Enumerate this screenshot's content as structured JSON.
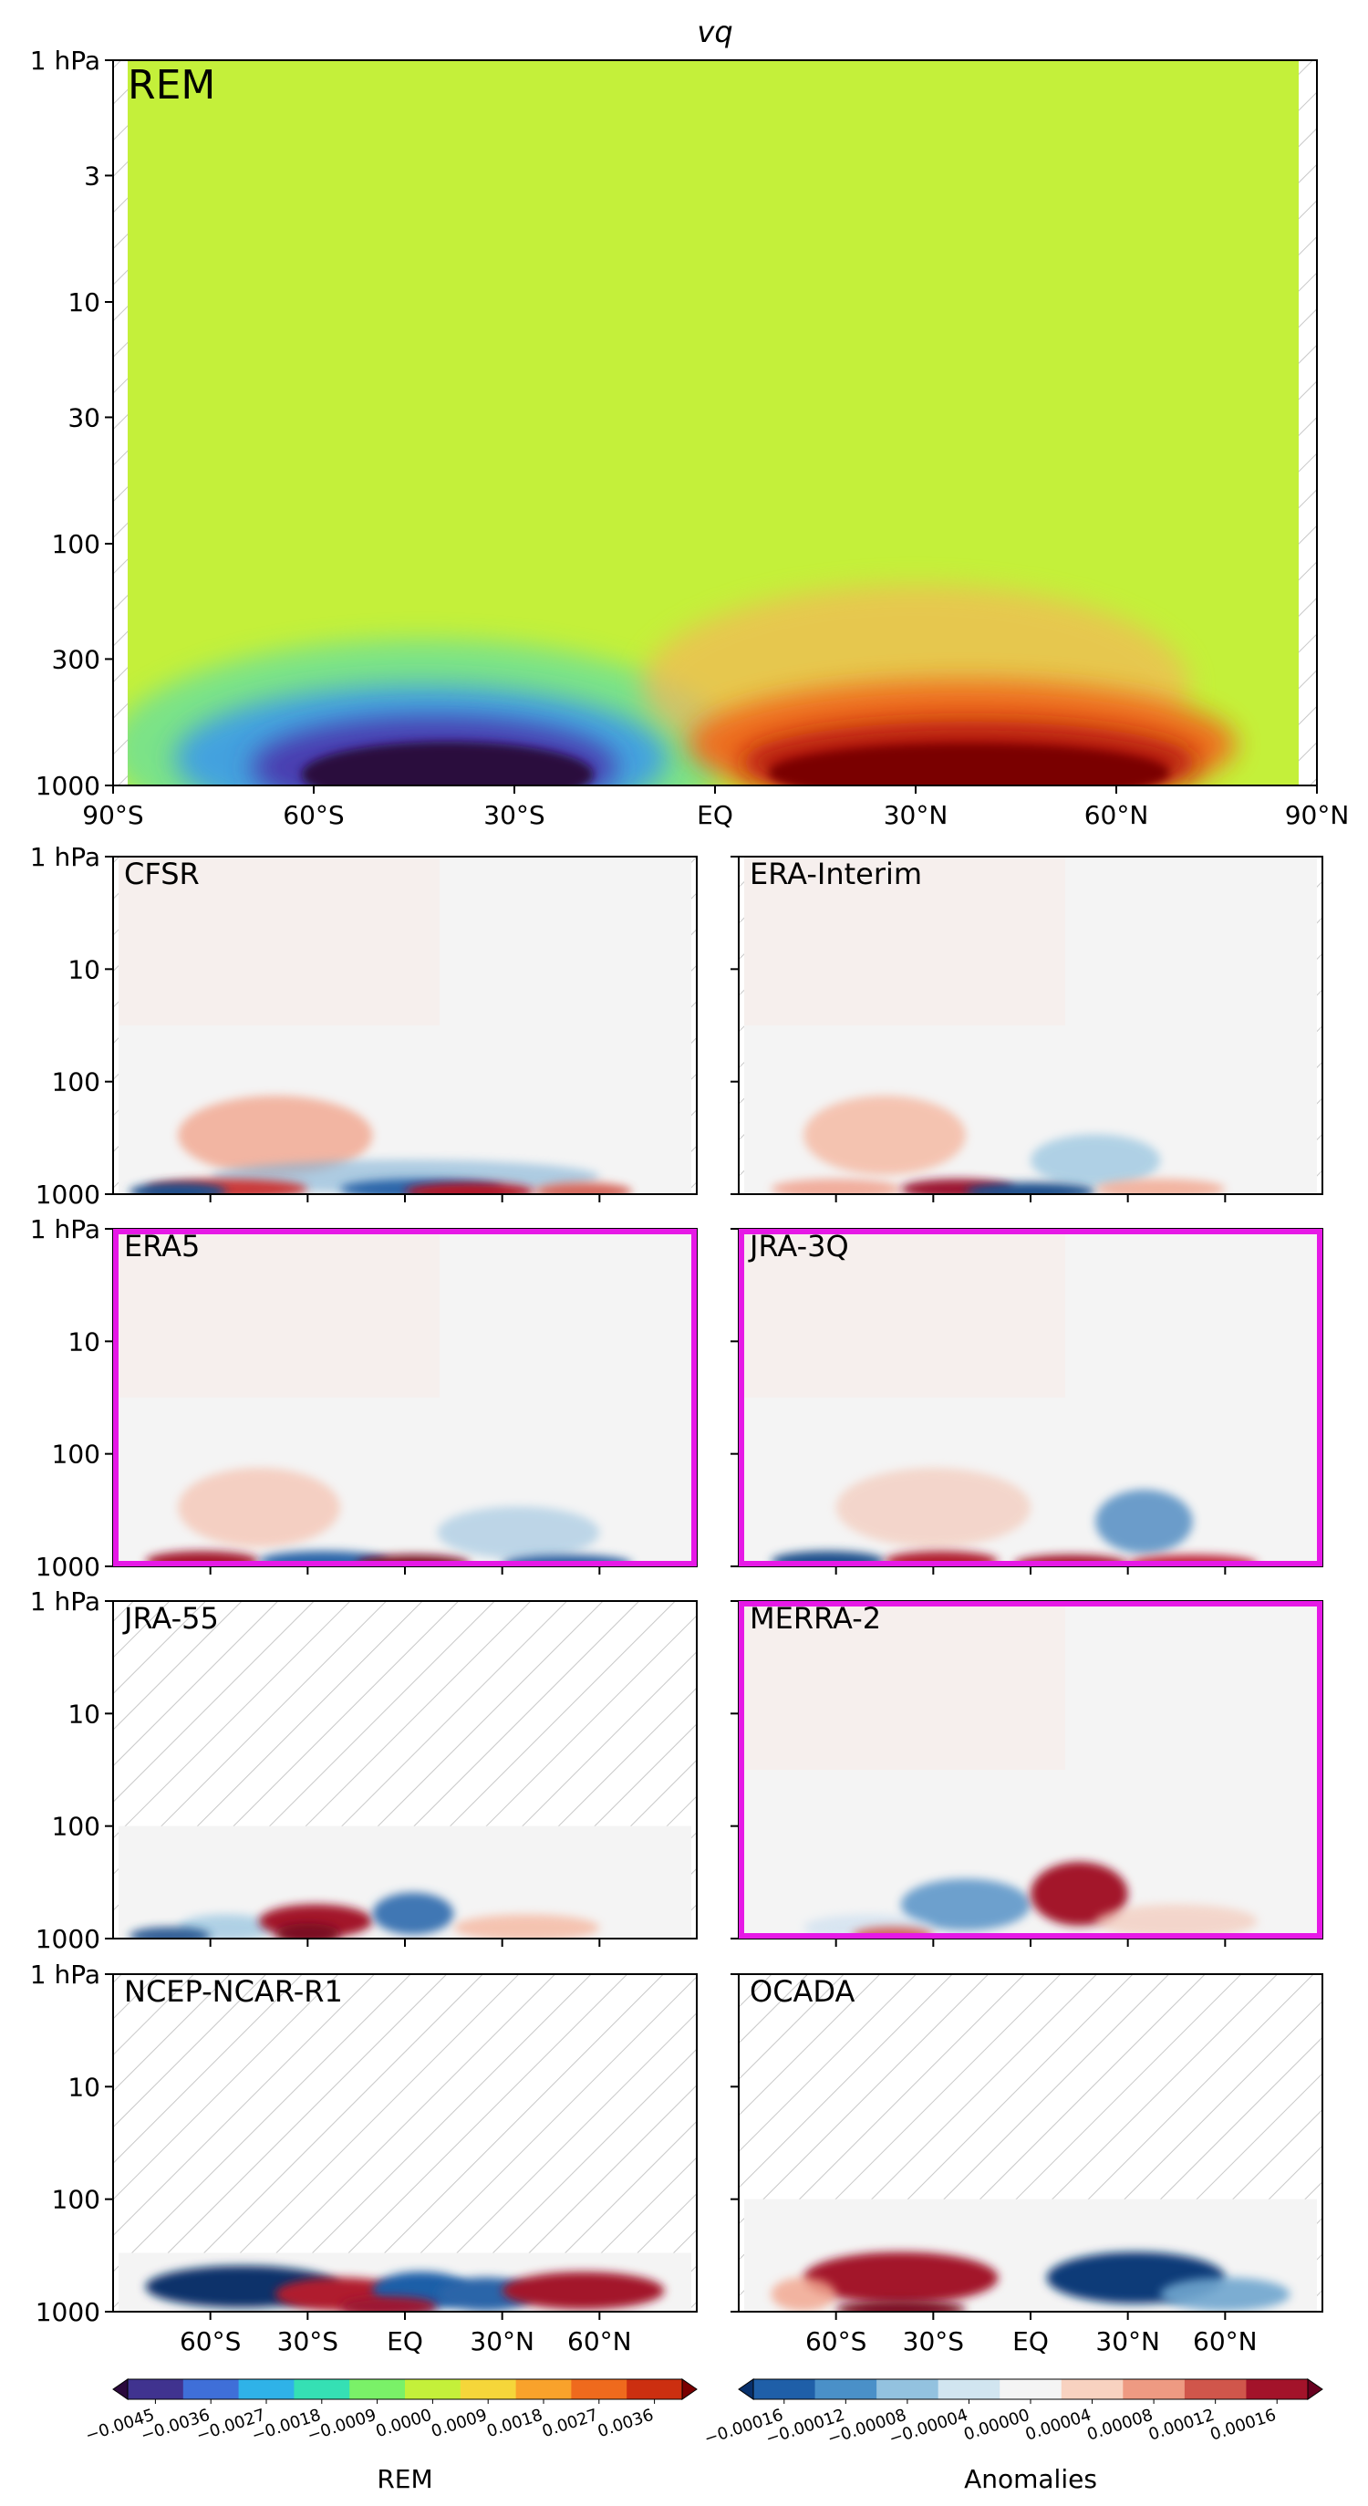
{
  "chart_data": {
    "type": "heatmap",
    "title": "vq",
    "y_scale": "log",
    "y_ticks_main": [
      "1 hPa",
      "3",
      "10",
      "30",
      "100",
      "300",
      "1000"
    ],
    "y_ticks_small": [
      "1 hPa",
      "10",
      "100",
      "1000"
    ],
    "x_ticks_main": [
      "90°S",
      "60°S",
      "30°S",
      "EQ",
      "30°N",
      "60°N",
      "90°N"
    ],
    "x_ticks_small": [
      "60°S",
      "30°S",
      "EQ",
      "30°N",
      "60°N"
    ],
    "highlight_color": "#e619e6",
    "main_panel": {
      "label": "REM",
      "label_color": "#e619e6",
      "background_color": "#c4f03a",
      "features": [
        {
          "lat": -40,
          "pressure": 850,
          "value": -0.0045,
          "color": "#3a1458"
        },
        {
          "lat": -45,
          "pressure": 700,
          "value": -0.0018,
          "color": "#3d9be8"
        },
        {
          "lat": 40,
          "pressure": 850,
          "value": 0.0045,
          "color": "#7a0000"
        },
        {
          "lat": 35,
          "pressure": 500,
          "value": 0.0018,
          "color": "#f07a1e"
        }
      ]
    },
    "anomaly_panels": [
      {
        "name": "CFSR",
        "highlighted": false,
        "top_hpa": 1
      },
      {
        "name": "ERA-Interim",
        "highlighted": false,
        "top_hpa": 1
      },
      {
        "name": "ERA5",
        "highlighted": true,
        "top_hpa": 1
      },
      {
        "name": "JRA-3Q",
        "highlighted": true,
        "top_hpa": 1
      },
      {
        "name": "JRA-55",
        "highlighted": false,
        "top_hpa": 100
      },
      {
        "name": "MERRA-2",
        "highlighted": true,
        "top_hpa": 1
      },
      {
        "name": "NCEP-NCAR-R1",
        "highlighted": false,
        "top_hpa": 300
      },
      {
        "name": "OCADA",
        "highlighted": false,
        "top_hpa": 100
      }
    ],
    "colorbars": [
      {
        "label": "REM",
        "ticks": [
          "−0.0045",
          "−0.0036",
          "−0.0027",
          "−0.0018",
          "−0.0009",
          "0.0000",
          "0.0009",
          "0.0018",
          "0.0027",
          "0.0036"
        ],
        "colors": [
          "#2b0a3d",
          "#40338f",
          "#3f6fd8",
          "#2fb2e8",
          "#35e0b4",
          "#7af168",
          "#c4f03a",
          "#f5d63a",
          "#f9a22b",
          "#ef6a1d",
          "#cc2f10",
          "#7a0000"
        ]
      },
      {
        "label": "Anomalies",
        "ticks": [
          "−0.00016",
          "−0.00012",
          "−0.00008",
          "−0.00004",
          "0.00000",
          "0.00004",
          "0.00008",
          "0.00012",
          "0.00016"
        ],
        "colors": [
          "#08306b",
          "#1f5fa8",
          "#4a90c8",
          "#93c2df",
          "#d1e5f0",
          "#f4f4f4",
          "#f8d2c0",
          "#ee9a82",
          "#d0564b",
          "#a3132a",
          "#67001f"
        ]
      }
    ]
  }
}
